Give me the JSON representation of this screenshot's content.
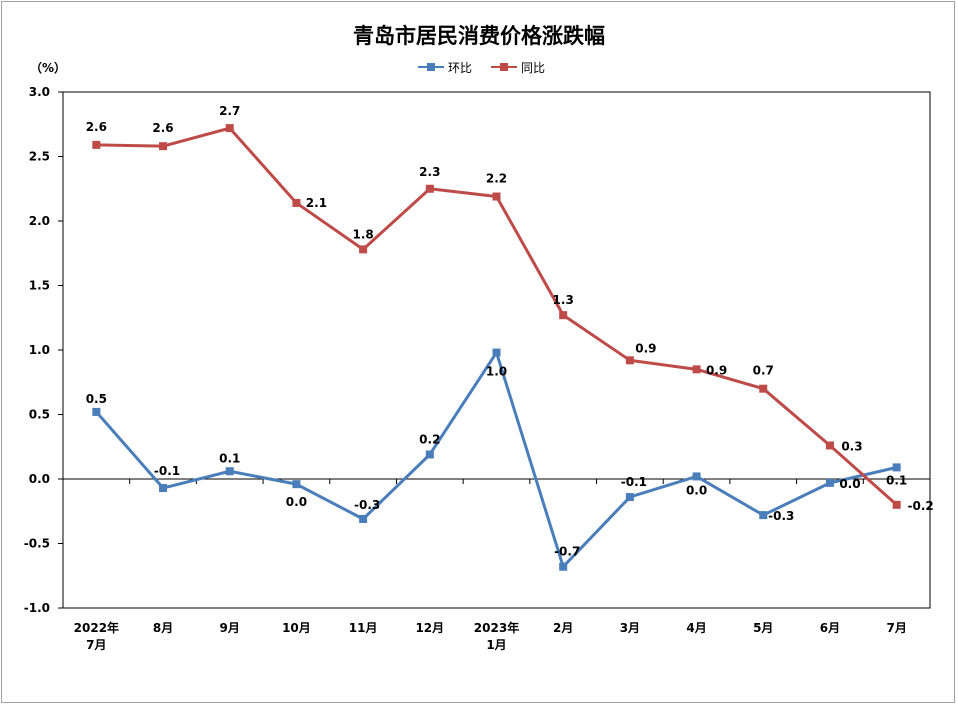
{
  "chart_data": {
    "type": "line",
    "title": "青岛市居民消费价格涨跌幅",
    "ylabel": "（%）",
    "xlabel": "",
    "ylim": [
      -1.0,
      3.0
    ],
    "ytick_step": 0.5,
    "yticks": [
      "3.0",
      "2.5",
      "2.0",
      "1.5",
      "1.0",
      "0.5",
      "0.0",
      "-0.5",
      "-1.0"
    ],
    "grid": false,
    "legend_position": "top-center",
    "categories": [
      [
        "2022年",
        "7月"
      ],
      [
        "8月"
      ],
      [
        "9月"
      ],
      [
        "10月"
      ],
      [
        "11月"
      ],
      [
        "12月"
      ],
      [
        "2023年",
        "1月"
      ],
      [
        "2月"
      ],
      [
        "3月"
      ],
      [
        "4月"
      ],
      [
        "5月"
      ],
      [
        "6月"
      ],
      [
        "7月"
      ]
    ],
    "series": [
      {
        "name": "环比",
        "color": "#4a7ebb",
        "values": [
          0.52,
          -0.07,
          0.06,
          -0.04,
          -0.31,
          0.19,
          0.98,
          -0.68,
          -0.14,
          0.02,
          -0.28,
          -0.03,
          0.09
        ],
        "labels": [
          "0.5",
          "-0.1",
          "0.1",
          "0.0",
          "-0.3",
          "0.2",
          "1.0",
          "-0.7",
          "-0.1",
          "0.0",
          "-0.3",
          "0.0",
          "0.1"
        ]
      },
      {
        "name": "同比",
        "color": "#be4b48",
        "values": [
          2.59,
          2.58,
          2.72,
          2.14,
          1.78,
          2.25,
          2.19,
          1.27,
          0.92,
          0.85,
          0.7,
          0.26,
          -0.2
        ],
        "labels": [
          "2.6",
          "2.6",
          "2.7",
          "2.1",
          "1.8",
          "2.3",
          "2.2",
          "1.3",
          "0.9",
          "0.9",
          "0.7",
          "0.3",
          "-0.2"
        ]
      }
    ]
  }
}
